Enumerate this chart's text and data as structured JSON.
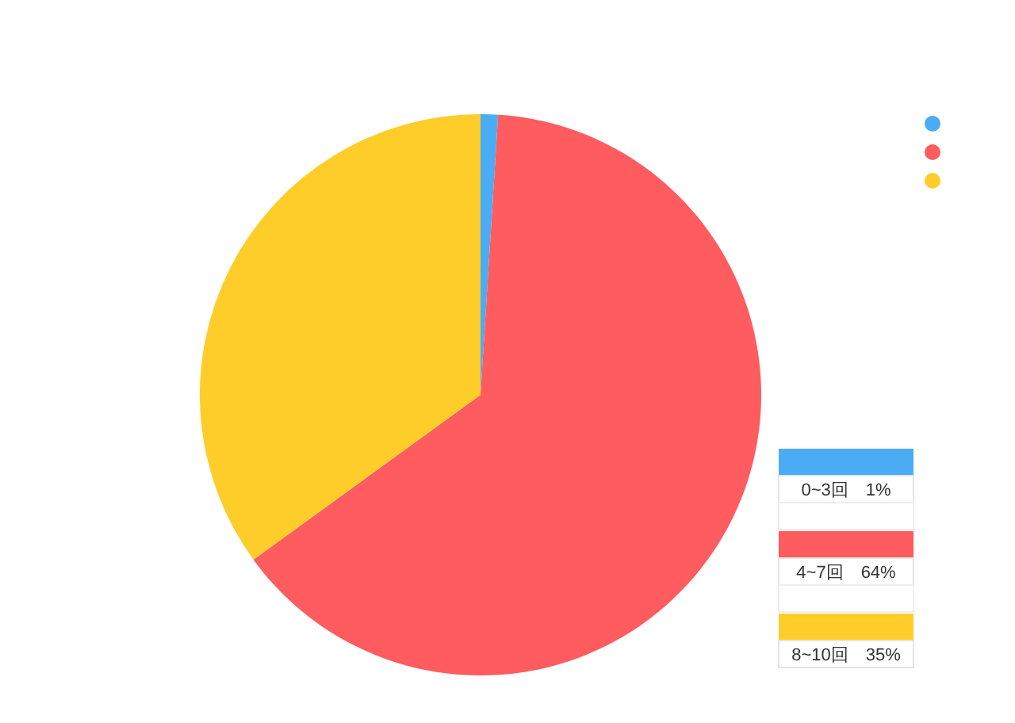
{
  "chart_data": {
    "type": "pie",
    "categories": [
      "0~3回",
      "4~7回",
      "8~10回"
    ],
    "values": [
      1,
      64,
      35
    ],
    "colors": [
      "#4aacf5",
      "#fe5c5f",
      "#fecd2a"
    ],
    "value_labels": [
      "1%",
      "64%",
      "35%"
    ],
    "legend": "bottom right"
  }
}
